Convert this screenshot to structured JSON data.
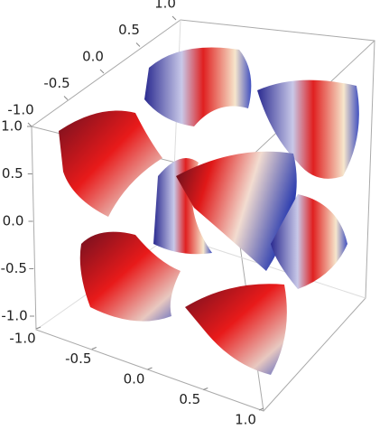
{
  "chart_data": {
    "type": "surface3d",
    "xlim": [
      -1,
      1
    ],
    "ylim": [
      -1,
      1
    ],
    "zlim": [
      -1,
      1
    ],
    "xticks": [
      {
        "value": -1,
        "label": "-1.0"
      },
      {
        "value": -0.5,
        "label": "-0.5"
      },
      {
        "value": 0,
        "label": "0.0"
      },
      {
        "value": 0.5,
        "label": "0.5"
      },
      {
        "value": 1,
        "label": "1.0"
      }
    ],
    "yticks": [
      {
        "value": -1,
        "label": "-1.0"
      },
      {
        "value": -0.5,
        "label": "-0.5"
      },
      {
        "value": 0,
        "label": "0.0"
      },
      {
        "value": 0.5,
        "label": "0.5"
      },
      {
        "value": 1,
        "label": "1.0"
      }
    ],
    "zticks": [
      {
        "value": -1,
        "label": "-1.0"
      },
      {
        "value": -0.5,
        "label": "-0.5"
      },
      {
        "value": 0,
        "label": "0.0"
      },
      {
        "value": 0.5,
        "label": "0.5"
      },
      {
        "value": 1,
        "label": "1.0"
      }
    ]
  }
}
